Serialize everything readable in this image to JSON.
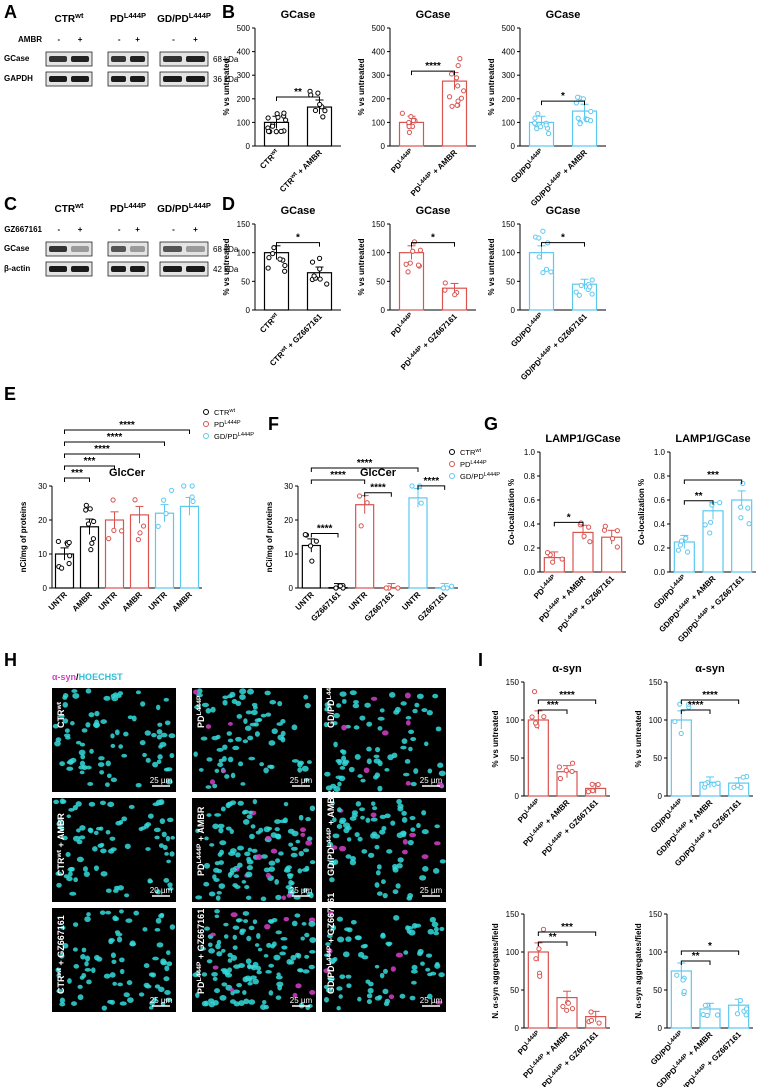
{
  "colors": {
    "black": "#000000",
    "red": "#d9534f",
    "cyan": "#5bc8f0",
    "magenta": "#d63fc7",
    "cell": "#2fd6d6"
  },
  "panels": {
    "A": {
      "label": "A",
      "headers": [
        "CTR",
        "PD",
        "GD/PD"
      ],
      "sup": [
        "wt",
        "L444P",
        "L444P"
      ],
      "treat": "AMBR",
      "rows": [
        "GCase",
        "GAPDH"
      ],
      "kda": [
        "68 kDa",
        "36 kDa"
      ],
      "signs": [
        "-",
        "+"
      ]
    },
    "C": {
      "label": "C",
      "headers": [
        "CTR",
        "PD",
        "GD/PD"
      ],
      "sup": [
        "wt",
        "L444P",
        "L444P"
      ],
      "treat": "GZ667161",
      "rows": [
        "GCase",
        "β-actin"
      ],
      "kda": [
        "68 kDa",
        "42 kDa"
      ],
      "signs": [
        "-",
        "+"
      ]
    },
    "B": {
      "label": "B"
    },
    "D": {
      "label": "D"
    },
    "E": {
      "label": "E"
    },
    "F": {
      "label": "F"
    },
    "G": {
      "label": "G"
    },
    "H": {
      "label": "H"
    },
    "I": {
      "label": "I"
    }
  },
  "legend": {
    "E": [
      "CTR",
      "PD",
      "GD/PD"
    ],
    "F": [
      "CTR",
      "PD",
      "GD/PD"
    ],
    "sup": [
      "wt",
      "L444P",
      "L444P"
    ]
  },
  "microscopy": {
    "header_a": "α-syn",
    "header_sep": "/",
    "header_b": "HOECHST",
    "scale": "25 µm",
    "scale_alt": "20 µm",
    "rows": [
      [
        "CTR",
        "PD",
        "GD/PD"
      ],
      [
        "CTR + AMBR",
        "PD + AMBR",
        "GD/PD + AMBR"
      ],
      [
        "CTR + GZ667161",
        "PD + GZ667161",
        "GD/PD + GZ667161"
      ]
    ]
  },
  "chart_data": [
    {
      "id": "B1",
      "type": "bar",
      "title": "GCase",
      "ylabel": "% vs untreated",
      "ylim": [
        0,
        500
      ],
      "yticks": [
        0,
        100,
        200,
        300,
        400,
        500
      ],
      "categories": [
        "CTR^wt",
        "CTR^wt + AMBR"
      ],
      "values": [
        100,
        165
      ],
      "colors": [
        "#000000",
        "#000000"
      ],
      "sig": [
        {
          "from": 0,
          "to": 1,
          "label": "**"
        }
      ]
    },
    {
      "id": "B2",
      "type": "bar",
      "title": "GCase",
      "ylabel": "% vs untreated",
      "ylim": [
        0,
        500
      ],
      "yticks": [
        0,
        100,
        200,
        300,
        400,
        500
      ],
      "categories": [
        "PD^L444P",
        "PD^L444P + AMBR"
      ],
      "values": [
        100,
        275
      ],
      "colors": [
        "#d9534f",
        "#d9534f"
      ],
      "sig": [
        {
          "from": 0,
          "to": 1,
          "label": "****"
        }
      ]
    },
    {
      "id": "B3",
      "type": "bar",
      "title": "GCase",
      "ylabel": "% vs untreated",
      "ylim": [
        0,
        500
      ],
      "yticks": [
        0,
        100,
        200,
        300,
        400,
        500
      ],
      "categories": [
        "GD/PD^L444P",
        "GD/PD^L444P + AMBR"
      ],
      "values": [
        100,
        148
      ],
      "colors": [
        "#5bc8f0",
        "#5bc8f0"
      ],
      "sig": [
        {
          "from": 0,
          "to": 1,
          "label": "*"
        }
      ]
    },
    {
      "id": "D1",
      "type": "bar",
      "title": "GCase",
      "ylabel": "% vs untreated",
      "ylim": [
        0,
        150
      ],
      "yticks": [
        0,
        50,
        100,
        150
      ],
      "categories": [
        "CTR^wt",
        "CTR^wt + GZ667161"
      ],
      "values": [
        100,
        65
      ],
      "colors": [
        "#000000",
        "#000000"
      ],
      "sig": [
        {
          "from": 0,
          "to": 1,
          "label": "*"
        }
      ]
    },
    {
      "id": "D2",
      "type": "bar",
      "title": "GCase",
      "ylabel": "% vs untreated",
      "ylim": [
        0,
        150
      ],
      "yticks": [
        0,
        50,
        100,
        150
      ],
      "categories": [
        "PD^L444P",
        "PD^L444P + GZ667161"
      ],
      "values": [
        100,
        38
      ],
      "colors": [
        "#d9534f",
        "#d9534f"
      ],
      "sig": [
        {
          "from": 0,
          "to": 1,
          "label": "*"
        }
      ]
    },
    {
      "id": "D3",
      "type": "bar",
      "title": "GCase",
      "ylabel": "% vs untreated",
      "ylim": [
        0,
        150
      ],
      "yticks": [
        0,
        50,
        100,
        150
      ],
      "categories": [
        "GD/PD^L444P",
        "GD/PD^L444P + GZ667161"
      ],
      "values": [
        100,
        45
      ],
      "colors": [
        "#5bc8f0",
        "#5bc8f0"
      ],
      "sig": [
        {
          "from": 0,
          "to": 1,
          "label": "*"
        }
      ]
    },
    {
      "id": "E",
      "type": "bar",
      "title": "GlcCer",
      "ylabel": "nCi/mg of proteins",
      "ylim": [
        0,
        30
      ],
      "yticks": [
        0,
        10,
        20,
        30
      ],
      "categories": [
        "UNTR",
        "AMBR",
        "UNTR",
        "AMBR",
        "UNTR",
        "AMBR"
      ],
      "values": [
        10,
        18,
        20,
        21.5,
        22,
        24
      ],
      "colors": [
        "#000000",
        "#000000",
        "#d9534f",
        "#d9534f",
        "#5bc8f0",
        "#5bc8f0"
      ],
      "sig": [
        {
          "from": 0,
          "to": 1,
          "label": "***"
        },
        {
          "from": 0,
          "to": 2,
          "label": "***"
        },
        {
          "from": 0,
          "to": 3,
          "label": "****"
        },
        {
          "from": 0,
          "to": 4,
          "label": "****"
        },
        {
          "from": 0,
          "to": 5,
          "label": "****"
        }
      ]
    },
    {
      "id": "F",
      "type": "bar",
      "title": "GlcCer",
      "ylabel": "nCi/mg of proteins",
      "ylim": [
        0,
        30
      ],
      "yticks": [
        0,
        10,
        20,
        30
      ],
      "categories": [
        "UNTR",
        "GZ667161",
        "UNTR",
        "GZ667161",
        "UNTR",
        "GZ667161"
      ],
      "values": [
        12.5,
        0.1,
        24.5,
        0.1,
        26.5,
        0.1
      ],
      "colors": [
        "#000000",
        "#000000",
        "#d9534f",
        "#d9534f",
        "#5bc8f0",
        "#5bc8f0"
      ],
      "sig": [
        {
          "from": 0,
          "to": 1,
          "label": "****"
        },
        {
          "from": 2,
          "to": 3,
          "label": "****"
        },
        {
          "from": 4,
          "to": 5,
          "label": "****"
        },
        {
          "from": 0,
          "to": 2,
          "label": "****"
        },
        {
          "from": 0,
          "to": 4,
          "label": "****"
        }
      ]
    },
    {
      "id": "G1",
      "type": "bar",
      "title": "LAMP1/GCase",
      "ylabel": "Co-localization %",
      "ylim": [
        0,
        1.0
      ],
      "yticks": [
        0.0,
        0.2,
        0.4,
        0.6,
        0.8,
        1.0
      ],
      "categories": [
        "PD^L444P",
        "PD^L444P + AMBR",
        "PD^L444P + GZ667161"
      ],
      "values": [
        0.12,
        0.33,
        0.29
      ],
      "colors": [
        "#d9534f",
        "#d9534f",
        "#d9534f"
      ],
      "sig": [
        {
          "from": 0,
          "to": 1,
          "label": "*"
        }
      ]
    },
    {
      "id": "G2",
      "type": "bar",
      "title": "LAMP1/GCase",
      "ylabel": "Co-localization %",
      "ylim": [
        0,
        1.0
      ],
      "yticks": [
        0.0,
        0.2,
        0.4,
        0.6,
        0.8,
        1.0
      ],
      "categories": [
        "GD/PD^L444P",
        "GD/PD^L444P + AMBR",
        "GD/PD^L444P + GZ667161"
      ],
      "values": [
        0.25,
        0.51,
        0.6
      ],
      "colors": [
        "#5bc8f0",
        "#5bc8f0",
        "#5bc8f0"
      ],
      "sig": [
        {
          "from": 0,
          "to": 1,
          "label": "**"
        },
        {
          "from": 0,
          "to": 2,
          "label": "***"
        }
      ]
    },
    {
      "id": "I1",
      "type": "bar",
      "title": "α-syn",
      "ylabel": "% vs untreated",
      "ylim": [
        0,
        150
      ],
      "yticks": [
        0,
        50,
        100,
        150
      ],
      "categories": [
        "PD^L444P",
        "PD^L444P + AMBR",
        "PD^L444P + GZ667161"
      ],
      "values": [
        100,
        32,
        10
      ],
      "colors": [
        "#d9534f",
        "#d9534f",
        "#d9534f"
      ],
      "sig": [
        {
          "from": 0,
          "to": 1,
          "label": "***"
        },
        {
          "from": 0,
          "to": 2,
          "label": "****"
        }
      ]
    },
    {
      "id": "I2",
      "type": "bar",
      "title": "α-syn",
      "ylabel": "% vs untreated",
      "ylim": [
        0,
        150
      ],
      "yticks": [
        0,
        50,
        100,
        150
      ],
      "categories": [
        "GD/PD^L444P",
        "GD/PD^L444P + AMBR",
        "GD/PD^L444P + GZ667161"
      ],
      "values": [
        100,
        18,
        17
      ],
      "colors": [
        "#5bc8f0",
        "#5bc8f0",
        "#5bc8f0"
      ],
      "sig": [
        {
          "from": 0,
          "to": 1,
          "label": "****"
        },
        {
          "from": 0,
          "to": 2,
          "label": "****"
        }
      ]
    },
    {
      "id": "I3",
      "type": "bar",
      "title": "",
      "ylabel": "N. α-syn aggregates/field",
      "ylim": [
        0,
        150
      ],
      "yticks": [
        0,
        50,
        100,
        150
      ],
      "categories": [
        "PD^L444P",
        "PD^L444P + AMBR",
        "PD^L444P + GZ667161"
      ],
      "values": [
        100,
        40,
        15
      ],
      "colors": [
        "#d9534f",
        "#d9534f",
        "#d9534f"
      ],
      "sig": [
        {
          "from": 0,
          "to": 1,
          "label": "**"
        },
        {
          "from": 0,
          "to": 2,
          "label": "***"
        }
      ]
    },
    {
      "id": "I4",
      "type": "bar",
      "title": "",
      "ylabel": "N. α-syn aggregates/field",
      "ylim": [
        0,
        150
      ],
      "yticks": [
        0,
        50,
        100,
        150
      ],
      "categories": [
        "GD/PD^L444P",
        "GD/PD^L444P + AMBR",
        "GD/PD^L444P + GZ667161"
      ],
      "values": [
        75,
        25,
        30
      ],
      "colors": [
        "#5bc8f0",
        "#5bc8f0",
        "#5bc8f0"
      ],
      "sig": [
        {
          "from": 0,
          "to": 1,
          "label": "**"
        },
        {
          "from": 0,
          "to": 2,
          "label": "*"
        }
      ]
    }
  ]
}
